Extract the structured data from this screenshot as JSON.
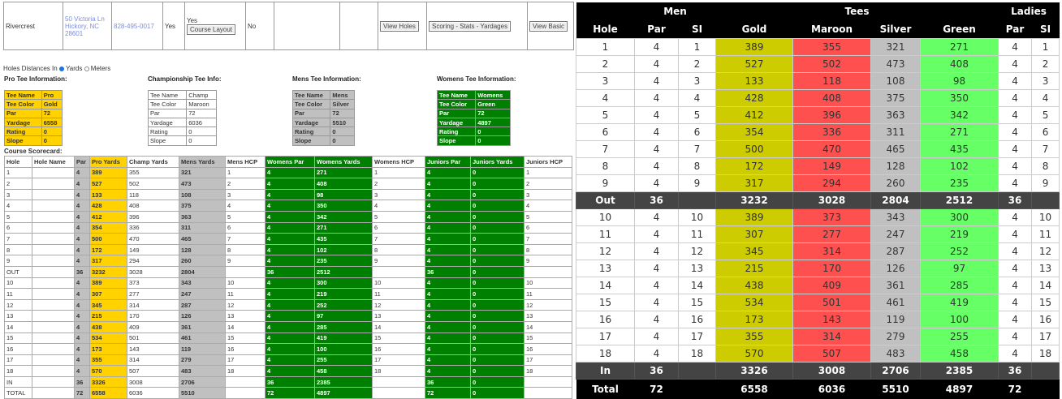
{
  "course": {
    "name": "Rivercrest",
    "address": [
      "50 Victoria Ln",
      "Hickory, NC",
      "28601"
    ],
    "phone": "828-495-0017",
    "col4": "Yes",
    "col5": "Yes",
    "layout_button": "Course Layout",
    "col6": "No",
    "buttons": [
      "View Holes",
      "Scoring - Stats - Yardages",
      "View Basic"
    ]
  },
  "units": {
    "label": "Holes Distances In",
    "options": [
      "Yards",
      "Meters"
    ],
    "selected": "Yards"
  },
  "tees": [
    {
      "heading": "Pro Tee Information:",
      "color": "gold",
      "rows": [
        [
          "Tee Name",
          "Pro"
        ],
        [
          "Tee Color",
          "Gold"
        ],
        [
          "Par",
          "72"
        ],
        [
          "Yardage",
          "6558"
        ],
        [
          "Rating",
          "0"
        ],
        [
          "Slope",
          "0"
        ]
      ]
    },
    {
      "heading": "Championship Tee Info:",
      "color": "white",
      "rows": [
        [
          "Tee Name",
          "Champ"
        ],
        [
          "Tee Color",
          "Maroon"
        ],
        [
          "Par",
          "72"
        ],
        [
          "Yardage",
          "6036"
        ],
        [
          "Rating",
          "0"
        ],
        [
          "Slope",
          "0"
        ]
      ]
    },
    {
      "heading": "Mens Tee Information:",
      "color": "silver",
      "rows": [
        [
          "Tee Name",
          "Mens"
        ],
        [
          "Tee Color",
          "Silver"
        ],
        [
          "Par",
          "72"
        ],
        [
          "Yardage",
          "5510"
        ],
        [
          "Rating",
          "0"
        ],
        [
          "Slope",
          "0"
        ]
      ]
    },
    {
      "heading": "Womens Tee Information:",
      "color": "green",
      "rows": [
        [
          "Tee Name",
          "Womens"
        ],
        [
          "Tee Color",
          "Green"
        ],
        [
          "Par",
          "72"
        ],
        [
          "Yardage",
          "4897"
        ],
        [
          "Rating",
          "0"
        ],
        [
          "Slope",
          "0"
        ]
      ]
    }
  ],
  "scorecard": {
    "label": "Course Scorecard:",
    "headers": [
      "Hole",
      "Hole Name",
      "Par",
      "Pro Yards",
      "Champ Yards",
      "Mens Yards",
      "Mens HCP",
      "Womens Par",
      "Womens Yards",
      "Womens HCP",
      "Juniors Par",
      "Juniors Yards",
      "Juniors HCP"
    ],
    "rows": [
      [
        "1",
        "",
        "4",
        "389",
        "355",
        "321",
        "1",
        "4",
        "271",
        "1",
        "4",
        "0",
        "1"
      ],
      [
        "2",
        "",
        "4",
        "527",
        "502",
        "473",
        "2",
        "4",
        "408",
        "2",
        "4",
        "0",
        "2"
      ],
      [
        "3",
        "",
        "4",
        "133",
        "118",
        "108",
        "3",
        "4",
        "98",
        "3",
        "4",
        "0",
        "3"
      ],
      [
        "4",
        "",
        "4",
        "428",
        "408",
        "375",
        "4",
        "4",
        "350",
        "4",
        "4",
        "0",
        "4"
      ],
      [
        "5",
        "",
        "4",
        "412",
        "396",
        "363",
        "5",
        "4",
        "342",
        "5",
        "4",
        "0",
        "5"
      ],
      [
        "6",
        "",
        "4",
        "354",
        "336",
        "311",
        "6",
        "4",
        "271",
        "6",
        "4",
        "0",
        "6"
      ],
      [
        "7",
        "",
        "4",
        "500",
        "470",
        "465",
        "7",
        "4",
        "435",
        "7",
        "4",
        "0",
        "7"
      ],
      [
        "8",
        "",
        "4",
        "172",
        "149",
        "128",
        "8",
        "4",
        "102",
        "8",
        "4",
        "0",
        "8"
      ],
      [
        "9",
        "",
        "4",
        "317",
        "294",
        "260",
        "9",
        "4",
        "235",
        "9",
        "4",
        "0",
        "9"
      ],
      [
        "OUT",
        "",
        "36",
        "3232",
        "3028",
        "2804",
        "",
        "36",
        "2512",
        "",
        "36",
        "0",
        ""
      ],
      [
        "10",
        "",
        "4",
        "389",
        "373",
        "343",
        "10",
        "4",
        "300",
        "10",
        "4",
        "0",
        "10"
      ],
      [
        "11",
        "",
        "4",
        "307",
        "277",
        "247",
        "11",
        "4",
        "219",
        "11",
        "4",
        "0",
        "11"
      ],
      [
        "12",
        "",
        "4",
        "345",
        "314",
        "287",
        "12",
        "4",
        "252",
        "12",
        "4",
        "0",
        "12"
      ],
      [
        "13",
        "",
        "4",
        "215",
        "170",
        "126",
        "13",
        "4",
        "97",
        "13",
        "4",
        "0",
        "13"
      ],
      [
        "14",
        "",
        "4",
        "438",
        "409",
        "361",
        "14",
        "4",
        "285",
        "14",
        "4",
        "0",
        "14"
      ],
      [
        "15",
        "",
        "4",
        "534",
        "501",
        "461",
        "15",
        "4",
        "419",
        "15",
        "4",
        "0",
        "15"
      ],
      [
        "16",
        "",
        "4",
        "173",
        "143",
        "119",
        "16",
        "4",
        "100",
        "16",
        "4",
        "0",
        "16"
      ],
      [
        "17",
        "",
        "4",
        "355",
        "314",
        "279",
        "17",
        "4",
        "255",
        "17",
        "4",
        "0",
        "17"
      ],
      [
        "18",
        "",
        "4",
        "570",
        "507",
        "483",
        "18",
        "4",
        "458",
        "18",
        "4",
        "0",
        "18"
      ],
      [
        "IN",
        "",
        "36",
        "3326",
        "3008",
        "2706",
        "",
        "36",
        "2385",
        "",
        "36",
        "0",
        ""
      ],
      [
        "TOTAL",
        "",
        "72",
        "6558",
        "6036",
        "5510",
        "",
        "72",
        "4897",
        "",
        "72",
        "0",
        ""
      ]
    ]
  },
  "card": {
    "group_headers": [
      "Men",
      "Tees",
      "Ladies"
    ],
    "headers": [
      "Hole",
      "Par",
      "SI",
      "Gold",
      "Maroon",
      "Silver",
      "Green",
      "Par",
      "SI"
    ],
    "colors": {
      "gold": "#cccc00",
      "maroon": "#ff5050",
      "silver": "#c0c0c0",
      "green": "#66ff66"
    },
    "rows": [
      [
        "1",
        "4",
        "1",
        "389",
        "355",
        "321",
        "271",
        "4",
        "1"
      ],
      [
        "2",
        "4",
        "2",
        "527",
        "502",
        "473",
        "408",
        "4",
        "2"
      ],
      [
        "3",
        "4",
        "3",
        "133",
        "118",
        "108",
        "98",
        "4",
        "3"
      ],
      [
        "4",
        "4",
        "4",
        "428",
        "408",
        "375",
        "350",
        "4",
        "4"
      ],
      [
        "5",
        "4",
        "5",
        "412",
        "396",
        "363",
        "342",
        "4",
        "5"
      ],
      [
        "6",
        "4",
        "6",
        "354",
        "336",
        "311",
        "271",
        "4",
        "6"
      ],
      [
        "7",
        "4",
        "7",
        "500",
        "470",
        "465",
        "435",
        "4",
        "7"
      ],
      [
        "8",
        "4",
        "8",
        "172",
        "149",
        "128",
        "102",
        "4",
        "8"
      ],
      [
        "9",
        "4",
        "9",
        "317",
        "294",
        "260",
        "235",
        "4",
        "9"
      ],
      [
        "Out",
        "36",
        "",
        "3232",
        "3028",
        "2804",
        "2512",
        "36",
        ""
      ],
      [
        "10",
        "4",
        "10",
        "389",
        "373",
        "343",
        "300",
        "4",
        "10"
      ],
      [
        "11",
        "4",
        "11",
        "307",
        "277",
        "247",
        "219",
        "4",
        "11"
      ],
      [
        "12",
        "4",
        "12",
        "345",
        "314",
        "287",
        "252",
        "4",
        "12"
      ],
      [
        "13",
        "4",
        "13",
        "215",
        "170",
        "126",
        "97",
        "4",
        "13"
      ],
      [
        "14",
        "4",
        "14",
        "438",
        "409",
        "361",
        "285",
        "4",
        "14"
      ],
      [
        "15",
        "4",
        "15",
        "534",
        "501",
        "461",
        "419",
        "4",
        "15"
      ],
      [
        "16",
        "4",
        "16",
        "173",
        "143",
        "119",
        "100",
        "4",
        "16"
      ],
      [
        "17",
        "4",
        "17",
        "355",
        "314",
        "279",
        "255",
        "4",
        "17"
      ],
      [
        "18",
        "4",
        "18",
        "570",
        "507",
        "483",
        "458",
        "4",
        "18"
      ],
      [
        "In",
        "36",
        "",
        "3326",
        "3008",
        "2706",
        "2385",
        "36",
        ""
      ],
      [
        "Total",
        "72",
        "",
        "6558",
        "6036",
        "5510",
        "4897",
        "72",
        ""
      ]
    ]
  }
}
